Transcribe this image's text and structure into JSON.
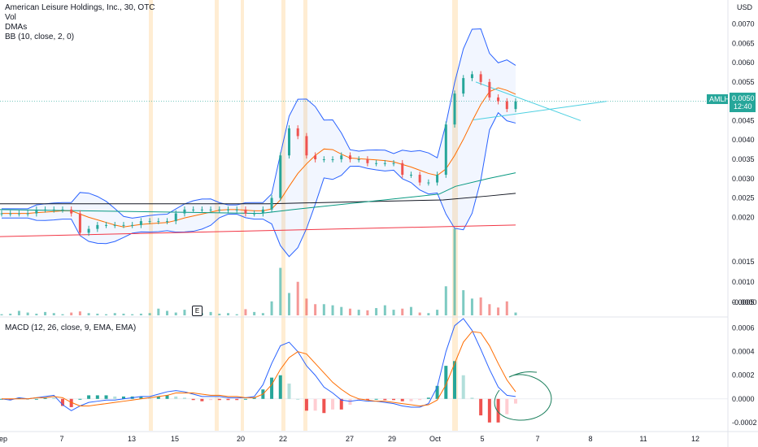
{
  "header": {
    "symbol_title": "American Leisure Holdings, Inc., 30, OTC",
    "indicator_vol": "Vol",
    "indicator_dmas": "DMAs",
    "indicator_bb": "BB (10, close, 2, 0)",
    "indicator_macd": "MACD (12, 26, close, 9, EMA, EMA)"
  },
  "price_axis": {
    "currency": "USD",
    "ticks": [
      "0.0070",
      "0.0065",
      "0.0060",
      "0.0055",
      "0.0050",
      "0.0045",
      "0.0040",
      "0.0035",
      "0.0030",
      "0.0025",
      "0.0020",
      "0.0015",
      "0.0010",
      "0.0005",
      "-0.0000"
    ],
    "last_price_ticker": "AMLH",
    "last_price_value": "0.0050",
    "last_price_countdown": "12:40"
  },
  "macd_axis": {
    "ticks": [
      "0.0006",
      "0.0004",
      "0.0002",
      "0.0000",
      "-0.0002"
    ]
  },
  "time_axis": {
    "labels": [
      "ep",
      "7",
      "13",
      "15",
      "20",
      "22",
      "27",
      "29",
      "Oct",
      "5",
      "7",
      "8",
      "11",
      "12"
    ]
  },
  "event_marker": "E",
  "colors": {
    "up": "#26a69a",
    "down": "#ef5350",
    "bb": "#2962ff",
    "bb_fill": "#2962ff",
    "macd": "#2962ff",
    "signal": "#ff6d00",
    "dma_black": "#131722",
    "dma_teal": "#089981",
    "dma_red": "#f23645",
    "trend": "#4dd0e1",
    "session": "#ffcc80",
    "annotation": "#1b7f5c"
  },
  "chart_data": {
    "type": "line",
    "price_range": [
      -0.0002,
      0.0072
    ],
    "macd_range": [
      -0.00027,
      0.00068
    ],
    "price_series": [
      0.0021,
      0.0021,
      0.0021,
      0.0021,
      0.0022,
      0.0022,
      0.0022,
      0.0022,
      0.0021,
      0.0016,
      0.0017,
      0.0018,
      0.0018,
      0.0018,
      0.0018,
      0.0018,
      0.0019,
      0.0019,
      0.0019,
      0.0019,
      0.0021,
      0.0022,
      0.0022,
      0.0022,
      0.0022,
      0.0022,
      0.0022,
      0.0022,
      0.0021,
      0.0021,
      0.0022,
      0.0025,
      0.0036,
      0.0043,
      0.0041,
      0.0036,
      0.0035,
      0.0035,
      0.0035,
      0.0036,
      0.0035,
      0.0035,
      0.0034,
      0.0034,
      0.0034,
      0.0034,
      0.0031,
      0.0031,
      0.0029,
      0.0029,
      0.0031,
      0.0044,
      0.0052,
      0.0056,
      0.0057,
      0.0055,
      0.0051,
      0.005,
      0.0048,
      0.005
    ],
    "volume_series": [
      2e-05,
      3e-05,
      8e-05,
      5e-05,
      3e-05,
      6e-05,
      4e-05,
      2e-05,
      5e-05,
      7e-05,
      4e-05,
      3e-05,
      2e-05,
      4e-05,
      3e-05,
      2e-05,
      3e-05,
      4e-05,
      0.00012,
      8e-05,
      5e-05,
      0.0001,
      4e-05,
      4e-05,
      6e-05,
      3e-05,
      4e-05,
      2e-05,
      0.00011,
      6e-05,
      4e-05,
      0.00025,
      0.00085,
      0.0004,
      0.0006,
      0.0003,
      0.0002,
      0.0002,
      0.00018,
      0.00015,
      0.00012,
      0.0001,
      9e-05,
      0.00013,
      0.00018,
      0.0001,
      0.00012,
      0.00015,
      5e-05,
      4e-05,
      0.0001,
      0.00052,
      0.00155,
      0.00045,
      0.0003,
      0.00032,
      0.0002,
      0.00014,
      0.00025,
      5e-05
    ],
    "macd_series": [
      0.0,
      -1e-05,
      1e-05,
      0.0,
      1e-05,
      2e-05,
      3e-05,
      -5e-05,
      -0.0001,
      -6e-05,
      -3e-05,
      -2e-05,
      -1e-05,
      -1e-05,
      0.0,
      1e-05,
      2e-05,
      2e-05,
      4e-05,
      6e-05,
      7e-05,
      6e-05,
      4e-05,
      2e-05,
      2e-05,
      2e-05,
      1e-05,
      1e-05,
      1e-05,
      2e-05,
      0.00012,
      0.0003,
      0.00045,
      0.00048,
      0.0004,
      0.00028,
      0.0002,
      0.0001,
      5e-05,
      -1e-05,
      -2e-05,
      -1e-05,
      -2e-05,
      -2e-05,
      -3e-05,
      -4e-05,
      -6e-05,
      -7e-05,
      -7e-05,
      -4e-05,
      0.0001,
      0.0004,
      0.00062,
      0.00068,
      0.00058,
      0.00042,
      0.00025,
      0.0001,
      3e-05,
      2e-05
    ],
    "signal_series": [
      0.0,
      0.0,
      0.0,
      0.0,
      1e-05,
      1e-05,
      2e-05,
      1e-05,
      -3e-05,
      -6e-05,
      -6e-05,
      -5e-05,
      -4e-05,
      -3e-05,
      -2e-05,
      -1e-05,
      0.0,
      1e-05,
      2e-05,
      3e-05,
      5e-05,
      5e-05,
      5e-05,
      4e-05,
      3e-05,
      3e-05,
      2e-05,
      2e-05,
      1e-05,
      1e-05,
      4e-05,
      0.00012,
      0.00025,
      0.00035,
      0.0004,
      0.00038,
      0.0003,
      0.00022,
      0.00014,
      8e-05,
      3e-05,
      0.0,
      -1e-05,
      -2e-05,
      -2e-05,
      -3e-05,
      -4e-05,
      -5e-05,
      -6e-05,
      -5e-05,
      -1e-05,
      0.00012,
      0.0003,
      0.00048,
      0.00057,
      0.00056,
      0.00045,
      0.0003,
      0.00016,
      6e-05
    ]
  }
}
